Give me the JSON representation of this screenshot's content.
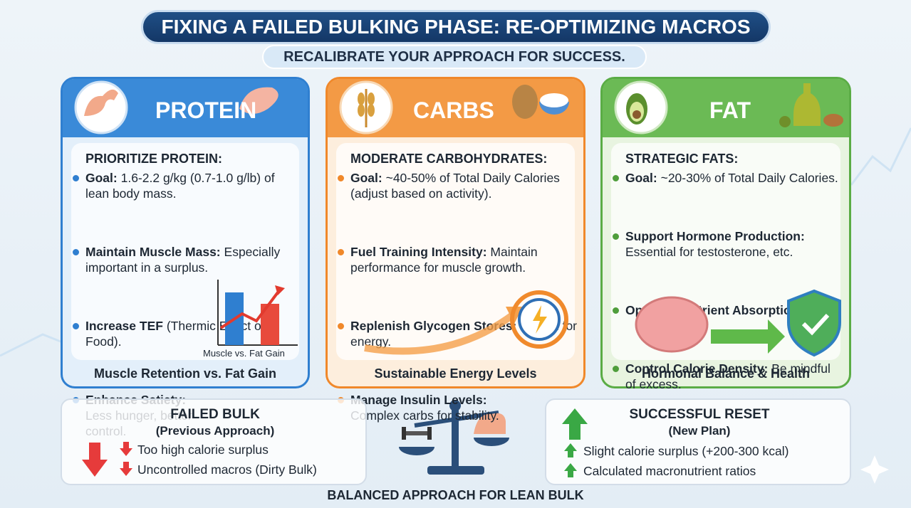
{
  "header": {
    "title": "FIXING A FAILED BULKING PHASE: RE-OPTIMIZING MACROS",
    "subtitle": "RECALIBRATE YOUR APPROACH FOR SUCCESS."
  },
  "panels": [
    {
      "title": "PROTEIN",
      "heading": "PRIORITIZE PROTEIN:",
      "items": [
        {
          "bold": "Goal:",
          "text": "1.6-2.2 g/kg (0.7-1.0 g/lb) of lean body mass."
        },
        {
          "bold": "Maintain Muscle Mass:",
          "text": "Especially important in a surplus."
        },
        {
          "bold": "Increase TEF",
          "text": "(Thermic Effect of Food)."
        },
        {
          "bold": "Enhance Satiety:",
          "text": "Less hunger, better control."
        }
      ],
      "chart_label": "Muscle vs. Fat Gain",
      "footer": "Muscle Retention vs. Fat Gain"
    },
    {
      "title": "CARBS",
      "heading": "MODERATE CARBOHYDRATES:",
      "items": [
        {
          "bold": "Goal:",
          "text": "~40-50% of Total Daily Calories (adjust based on activity)."
        },
        {
          "bold": "Fuel Training Intensity:",
          "text": "Maintain performance for muscle growth."
        },
        {
          "bold": "Replenish Glycogen Stores:",
          "text": "Crucial for energy."
        },
        {
          "bold": "Manage Insulin Levels:",
          "text": "Complex carbs for stability."
        }
      ],
      "footer": "Sustainable Energy Levels"
    },
    {
      "title": "FAT",
      "heading": "STRATEGIC FATS:",
      "items": [
        {
          "bold": "Goal:",
          "text": "~20-30% of Total Daily Calories."
        },
        {
          "bold": "Support Hormone Production:",
          "text": "Essential for testosterone, etc."
        },
        {
          "bold": "Optimize Nutrient Absorption."
        },
        {
          "bold": "Control Calorie Density:",
          "text": "Be mindful of excess."
        }
      ],
      "footer": "Hormonal Balance & Health"
    }
  ],
  "comparison": {
    "left": {
      "title": "FAILED BULK",
      "subtitle": "(Previous Approach)",
      "items": [
        "Too high calorie surplus",
        "Uncontrolled macros (Dirty Bulk)"
      ]
    },
    "right": {
      "title": "SUCCESSFUL RESET",
      "subtitle": "(New Plan)",
      "items": [
        "Slight calorie surplus (+200-300 kcal)",
        "Calculated macronutrient ratios"
      ]
    },
    "caption": "BALANCED APPROACH FOR LEAN BULK"
  }
}
